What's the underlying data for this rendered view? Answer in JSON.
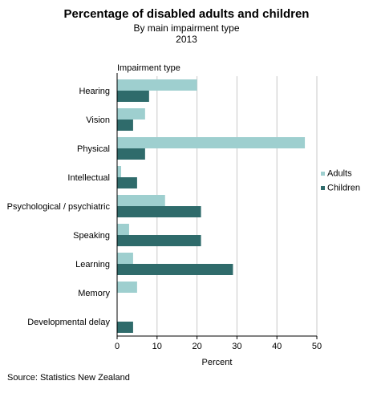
{
  "chart_data": {
    "type": "bar",
    "orientation": "horizontal",
    "title": "Percentage of disabled adults and children",
    "subtitle": "By main impairment type",
    "year": "2013",
    "category_axis_title": "Impairment type",
    "xlabel": "Percent",
    "xlim": [
      0,
      50
    ],
    "xticks": [
      0,
      10,
      20,
      30,
      40,
      50
    ],
    "grid": "vertical",
    "legend_position": "right",
    "categories": [
      "Hearing",
      "Vision",
      "Physical",
      "Intellectual",
      "Psychological / psychiatric",
      "Speaking",
      "Learning",
      "Memory",
      "Developmental delay"
    ],
    "series": [
      {
        "name": "Adults",
        "color": "#9ecfcf",
        "values": [
          20,
          7,
          47,
          1,
          12,
          3,
          4,
          5,
          0
        ]
      },
      {
        "name": "Children",
        "color": "#2f6b6b",
        "values": [
          8,
          4,
          7,
          5,
          21,
          21,
          29,
          0,
          4
        ]
      }
    ]
  },
  "source": "Source: Statistics New Zealand"
}
